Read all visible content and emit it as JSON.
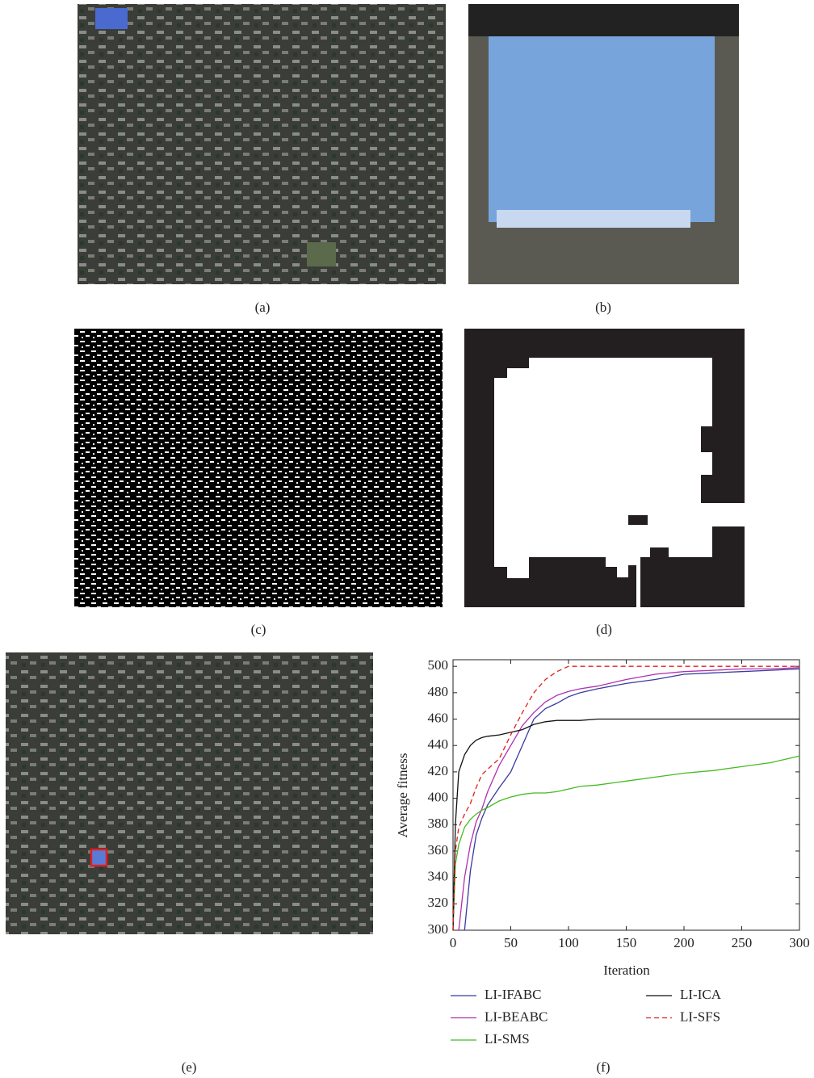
{
  "panel_labels": [
    "(a)",
    "(b)",
    "(c)",
    "(d)",
    "(e)",
    "(f)"
  ],
  "chart_data": {
    "type": "line",
    "xlabel": "Iteration",
    "ylabel": "Average fitness",
    "x": [
      0,
      2,
      5,
      10,
      15,
      20,
      25,
      30,
      40,
      50,
      60,
      70,
      80,
      90,
      100,
      110,
      125,
      150,
      175,
      200,
      225,
      250,
      275,
      300
    ],
    "xlim": [
      0,
      300
    ],
    "xticks": [
      0,
      50,
      100,
      150,
      200,
      250,
      300
    ],
    "ylim": [
      300,
      505
    ],
    "yticks": [
      300,
      320,
      340,
      360,
      380,
      400,
      420,
      440,
      460,
      480,
      500
    ],
    "series": [
      {
        "name": "LI-IFABC",
        "color": "#3a3aa0",
        "dashed": false,
        "values": [
          null,
          null,
          null,
          300,
          345,
          372,
          385,
          395,
          408,
          420,
          440,
          460,
          468,
          472,
          477,
          480,
          483,
          487,
          490,
          494,
          495,
          496,
          497,
          498
        ]
      },
      {
        "name": "LI-BEABC",
        "color": "#b030b0",
        "dashed": false,
        "values": [
          null,
          null,
          300,
          340,
          365,
          382,
          392,
          405,
          425,
          440,
          455,
          465,
          473,
          478,
          481,
          483,
          485,
          490,
          494,
          496,
          497,
          498,
          498,
          499
        ]
      },
      {
        "name": "LI-SMS",
        "color": "#44bb22",
        "dashed": false,
        "values": [
          300,
          350,
          365,
          378,
          384,
          388,
          391,
          393,
          398,
          401,
          403,
          404,
          404,
          405,
          407,
          409,
          410,
          413,
          416,
          419,
          421,
          424,
          427,
          432
        ]
      },
      {
        "name": "LI-ICA",
        "color": "#111111",
        "dashed": false,
        "values": [
          300,
          380,
          420,
          433,
          440,
          444,
          446,
          447,
          448,
          450,
          452,
          456,
          458,
          459,
          459,
          459,
          460,
          460,
          460,
          460,
          460,
          460,
          460,
          460
        ]
      },
      {
        "name": "LI-SFS",
        "color": "#e02020",
        "dashed": true,
        "values": [
          300,
          360,
          378,
          388,
          396,
          408,
          418,
          422,
          430,
          448,
          465,
          480,
          490,
          496,
          500,
          500,
          500,
          500,
          500,
          500,
          500,
          500,
          500,
          500
        ]
      }
    ]
  }
}
